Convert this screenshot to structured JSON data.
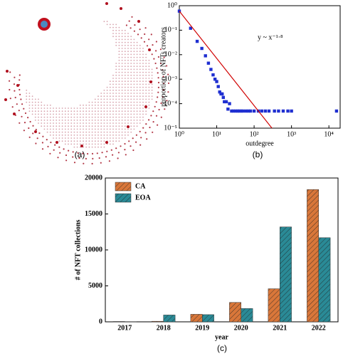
{
  "chart_data": [
    {
      "type": "network",
      "caption": "(a)"
    },
    {
      "type": "scatter",
      "caption": "(b)",
      "xlabel": "outdegree",
      "ylabel": "proportion of NFTs creators",
      "annotation": "y ~ x⁻¹·⁸",
      "xscale": "log",
      "yscale": "log",
      "xlim": [
        1,
        20000
      ],
      "ylim": [
        1e-05,
        1
      ],
      "xticks": [
        {
          "value": 1,
          "label": "10⁰"
        },
        {
          "value": 10,
          "label": "10¹"
        },
        {
          "value": 100,
          "label": "10²"
        },
        {
          "value": 1000,
          "label": "10³"
        },
        {
          "value": 10000,
          "label": "10⁴"
        }
      ],
      "yticks": [
        {
          "value": 1e-05,
          "label": "10⁻⁵"
        },
        {
          "value": 0.0001,
          "label": "10⁻⁴"
        },
        {
          "value": 0.001,
          "label": "10⁻³"
        },
        {
          "value": 0.01,
          "label": "10⁻²"
        },
        {
          "value": 0.1,
          "label": "10⁻¹"
        },
        {
          "value": 1,
          "label": "10⁰"
        }
      ],
      "series": [
        {
          "color": "#1f2fd1",
          "marker": "square",
          "x": [
            1,
            2,
            3,
            4,
            5,
            6,
            7,
            8,
            9,
            10,
            11,
            12,
            13,
            14,
            15,
            16,
            18,
            20,
            22,
            25,
            28,
            32,
            36,
            40,
            45,
            50,
            60,
            70,
            80,
            100,
            130,
            160,
            200,
            250,
            350,
            450,
            600,
            800,
            1000,
            16000
          ],
          "values": [
            0.6,
            0.12,
            0.035,
            0.018,
            0.009,
            0.0045,
            0.0025,
            0.0015,
            0.001,
            0.0008,
            0.0005,
            0.0003,
            0.00025,
            0.00025,
            0.00018,
            0.00012,
            0.00012,
            6e-05,
            0.0001,
            5e-05,
            5e-05,
            5e-05,
            5e-05,
            5e-05,
            5e-05,
            5e-05,
            5e-05,
            5e-05,
            5e-05,
            5e-05,
            5e-05,
            5e-05,
            5e-05,
            5e-05,
            5e-05,
            5e-05,
            5e-05,
            5e-05,
            5e-05,
            5e-05
          ]
        },
        {
          "color": "#d00000",
          "marker": "line",
          "x": [
            1,
            300
          ],
          "values": [
            0.6,
            1e-05
          ]
        }
      ]
    },
    {
      "type": "bar",
      "caption": "(c)",
      "xlabel": "year",
      "ylabel": "# of NFT collections",
      "categories": [
        "2017",
        "2018",
        "2019",
        "2020",
        "2021",
        "2022"
      ],
      "ylim": [
        0,
        20000
      ],
      "yticks": [
        0,
        5000,
        10000,
        15000,
        20000
      ],
      "legend": "upper-left",
      "series": [
        {
          "name": "CA",
          "color": "#d9773a",
          "values": [
            50,
            80,
            1050,
            2700,
            4600,
            18400
          ]
        },
        {
          "name": "EOA",
          "color": "#2a8a96",
          "values": [
            30,
            950,
            1000,
            1850,
            13200,
            11700
          ]
        }
      ]
    }
  ]
}
